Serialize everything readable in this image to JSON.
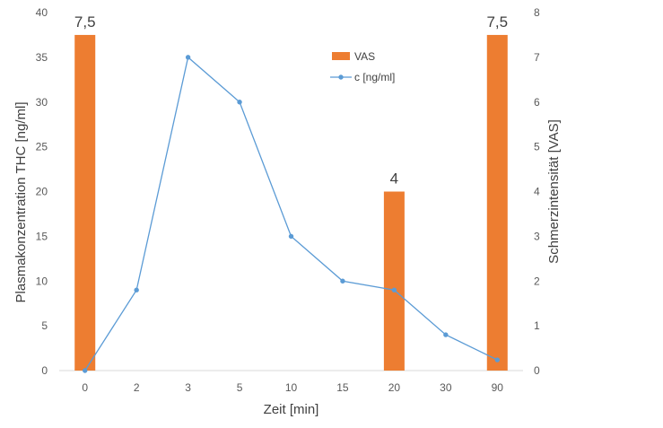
{
  "chart_data": {
    "type": "bar+line",
    "categories": [
      "0",
      "2",
      "3",
      "5",
      "10",
      "15",
      "20",
      "30",
      "90"
    ],
    "xlabel": "Zeit [min]",
    "ylabel_left": "Plasmakonzentration THC [ng/ml]",
    "ylabel_right": "Schmerzintensität [VAS]",
    "ylim_left": [
      0,
      40
    ],
    "yticks_left": [
      0,
      5,
      10,
      15,
      20,
      25,
      30,
      35,
      40
    ],
    "ylim_right": [
      0,
      8
    ],
    "yticks_right": [
      0,
      1,
      2,
      3,
      4,
      5,
      6,
      7,
      8
    ],
    "grid": false,
    "legend": "top-center",
    "series": [
      {
        "name": "VAS",
        "kind": "bar",
        "axis": "right",
        "color": "#ED7D31",
        "values": [
          7.5,
          null,
          null,
          null,
          null,
          null,
          4,
          null,
          7.5
        ],
        "labels": [
          "7,5",
          "",
          "",
          "",
          "",
          "",
          "4",
          "",
          "7,5"
        ]
      },
      {
        "name": "c [ng/ml]",
        "kind": "line",
        "axis": "left",
        "color": "#5B9BD5",
        "values": [
          0,
          9,
          35,
          30,
          15,
          10,
          9,
          4,
          1.2
        ]
      }
    ]
  }
}
